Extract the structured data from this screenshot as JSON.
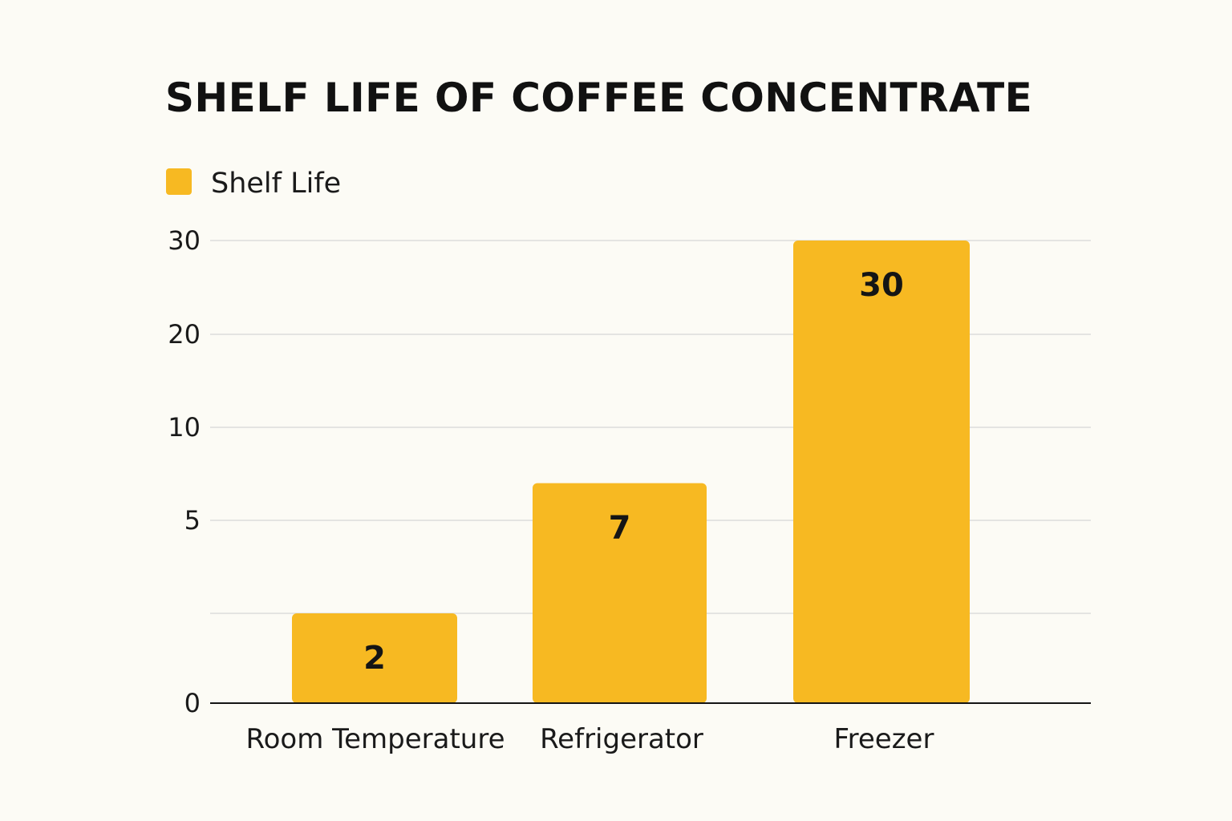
{
  "chart_data": {
    "type": "bar",
    "title": "SHELF LIFE OF COFFEE CONCENTRATE",
    "xlabel": "",
    "ylabel": "",
    "categories": [
      "Room Temperature",
      "Refrigerator",
      "Freezer"
    ],
    "series": [
      {
        "name": "Shelf Life",
        "values": [
          2,
          7,
          30
        ],
        "data_labels": [
          "2",
          "7",
          "30"
        ]
      }
    ],
    "y_ticks": [
      {
        "value": 0,
        "label": "0"
      },
      {
        "value": 2,
        "label": ""
      },
      {
        "value": 5,
        "label": "5"
      },
      {
        "value": 10,
        "label": "10"
      },
      {
        "value": 20,
        "label": "20"
      },
      {
        "value": 30,
        "label": "30"
      }
    ],
    "ylim": [
      0,
      30
    ],
    "grid": true,
    "legend_position": "top-left",
    "colors": {
      "bar": "#f7b922",
      "grid": "#dcdcdc",
      "axis": "#141414"
    }
  }
}
